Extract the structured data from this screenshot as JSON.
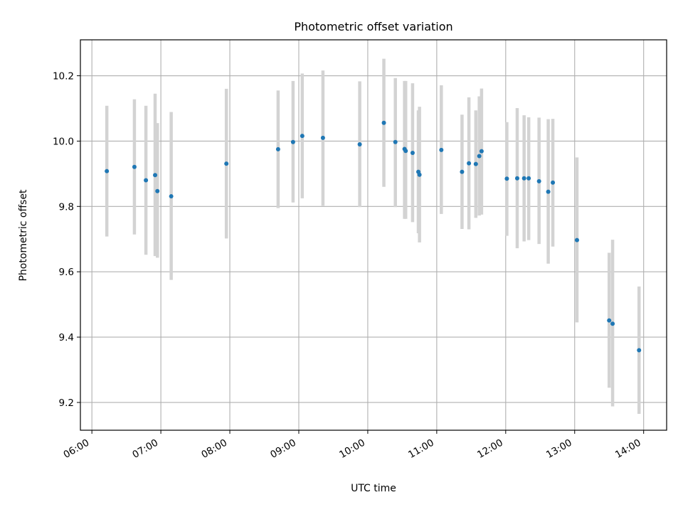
{
  "chart_data": {
    "type": "scatter",
    "title": "Photometric offset variation",
    "xlabel": "UTC time",
    "ylabel": "Photometric offset",
    "x_ticks": [
      "06:00",
      "07:00",
      "08:00",
      "09:00",
      "10:00",
      "11:00",
      "12:00",
      "13:00",
      "14:00"
    ],
    "y_ticks": [
      "9.2",
      "9.4",
      "9.6",
      "9.8",
      "10.0",
      "10.2"
    ],
    "xlim": [
      "05:50",
      "14:20"
    ],
    "ylim": [
      9.115,
      10.31
    ],
    "grid": true,
    "point_color": "#1f77b4",
    "errorbar_color": "#d3d3d3",
    "points": [
      {
        "t": "06:13",
        "y": 9.908,
        "lo": 9.708,
        "hi": 10.108
      },
      {
        "t": "06:37",
        "y": 9.921,
        "lo": 9.714,
        "hi": 10.128
      },
      {
        "t": "06:47",
        "y": 9.88,
        "lo": 9.652,
        "hi": 10.108
      },
      {
        "t": "06:55",
        "y": 9.896,
        "lo": 9.648,
        "hi": 10.145
      },
      {
        "t": "06:57",
        "y": 9.847,
        "lo": 9.643,
        "hi": 10.055
      },
      {
        "t": "07:09",
        "y": 9.831,
        "lo": 9.575,
        "hi": 10.089
      },
      {
        "t": "07:57",
        "y": 9.931,
        "lo": 9.702,
        "hi": 10.16
      },
      {
        "t": "08:42",
        "y": 9.975,
        "lo": 9.795,
        "hi": 10.155
      },
      {
        "t": "08:55",
        "y": 9.997,
        "lo": 9.812,
        "hi": 10.184
      },
      {
        "t": "09:03",
        "y": 10.016,
        "lo": 9.825,
        "hi": 10.207
      },
      {
        "t": "09:21",
        "y": 10.01,
        "lo": 9.802,
        "hi": 10.216
      },
      {
        "t": "09:53",
        "y": 9.99,
        "lo": 9.798,
        "hi": 10.183
      },
      {
        "t": "10:14",
        "y": 10.056,
        "lo": 9.86,
        "hi": 10.252
      },
      {
        "t": "10:24",
        "y": 9.997,
        "lo": 9.798,
        "hi": 10.193
      },
      {
        "t": "10:32",
        "y": 9.976,
        "lo": 9.762,
        "hi": 10.184
      },
      {
        "t": "10:33",
        "y": 9.97,
        "lo": 9.762,
        "hi": 10.184
      },
      {
        "t": "10:39",
        "y": 9.964,
        "lo": 9.752,
        "hi": 10.177
      },
      {
        "t": "10:44",
        "y": 9.906,
        "lo": 9.718,
        "hi": 10.094
      },
      {
        "t": "10:45",
        "y": 9.897,
        "lo": 9.69,
        "hi": 10.105
      },
      {
        "t": "11:04",
        "y": 9.973,
        "lo": 9.777,
        "hi": 10.171
      },
      {
        "t": "11:22",
        "y": 9.906,
        "lo": 9.731,
        "hi": 10.081
      },
      {
        "t": "11:28",
        "y": 9.932,
        "lo": 9.73,
        "hi": 10.134
      },
      {
        "t": "11:34",
        "y": 9.93,
        "lo": 9.765,
        "hi": 10.094
      },
      {
        "t": "11:37",
        "y": 9.954,
        "lo": 9.772,
        "hi": 10.137
      },
      {
        "t": "11:39",
        "y": 9.969,
        "lo": 9.775,
        "hi": 10.161
      },
      {
        "t": "12:01",
        "y": 9.885,
        "lo": 9.71,
        "hi": 10.058
      },
      {
        "t": "12:10",
        "y": 9.886,
        "lo": 9.672,
        "hi": 10.101
      },
      {
        "t": "12:16",
        "y": 9.886,
        "lo": 9.693,
        "hi": 10.079
      },
      {
        "t": "12:20",
        "y": 9.886,
        "lo": 9.697,
        "hi": 10.073
      },
      {
        "t": "12:29",
        "y": 9.877,
        "lo": 9.685,
        "hi": 10.072
      },
      {
        "t": "12:37",
        "y": 9.845,
        "lo": 9.625,
        "hi": 10.067
      },
      {
        "t": "12:41",
        "y": 9.873,
        "lo": 9.677,
        "hi": 10.068
      },
      {
        "t": "13:02",
        "y": 9.697,
        "lo": 9.445,
        "hi": 9.95
      },
      {
        "t": "13:30",
        "y": 9.451,
        "lo": 9.245,
        "hi": 9.658
      },
      {
        "t": "13:33",
        "y": 9.441,
        "lo": 9.188,
        "hi": 9.698
      },
      {
        "t": "13:56",
        "y": 9.36,
        "lo": 9.165,
        "hi": 9.555
      }
    ]
  }
}
